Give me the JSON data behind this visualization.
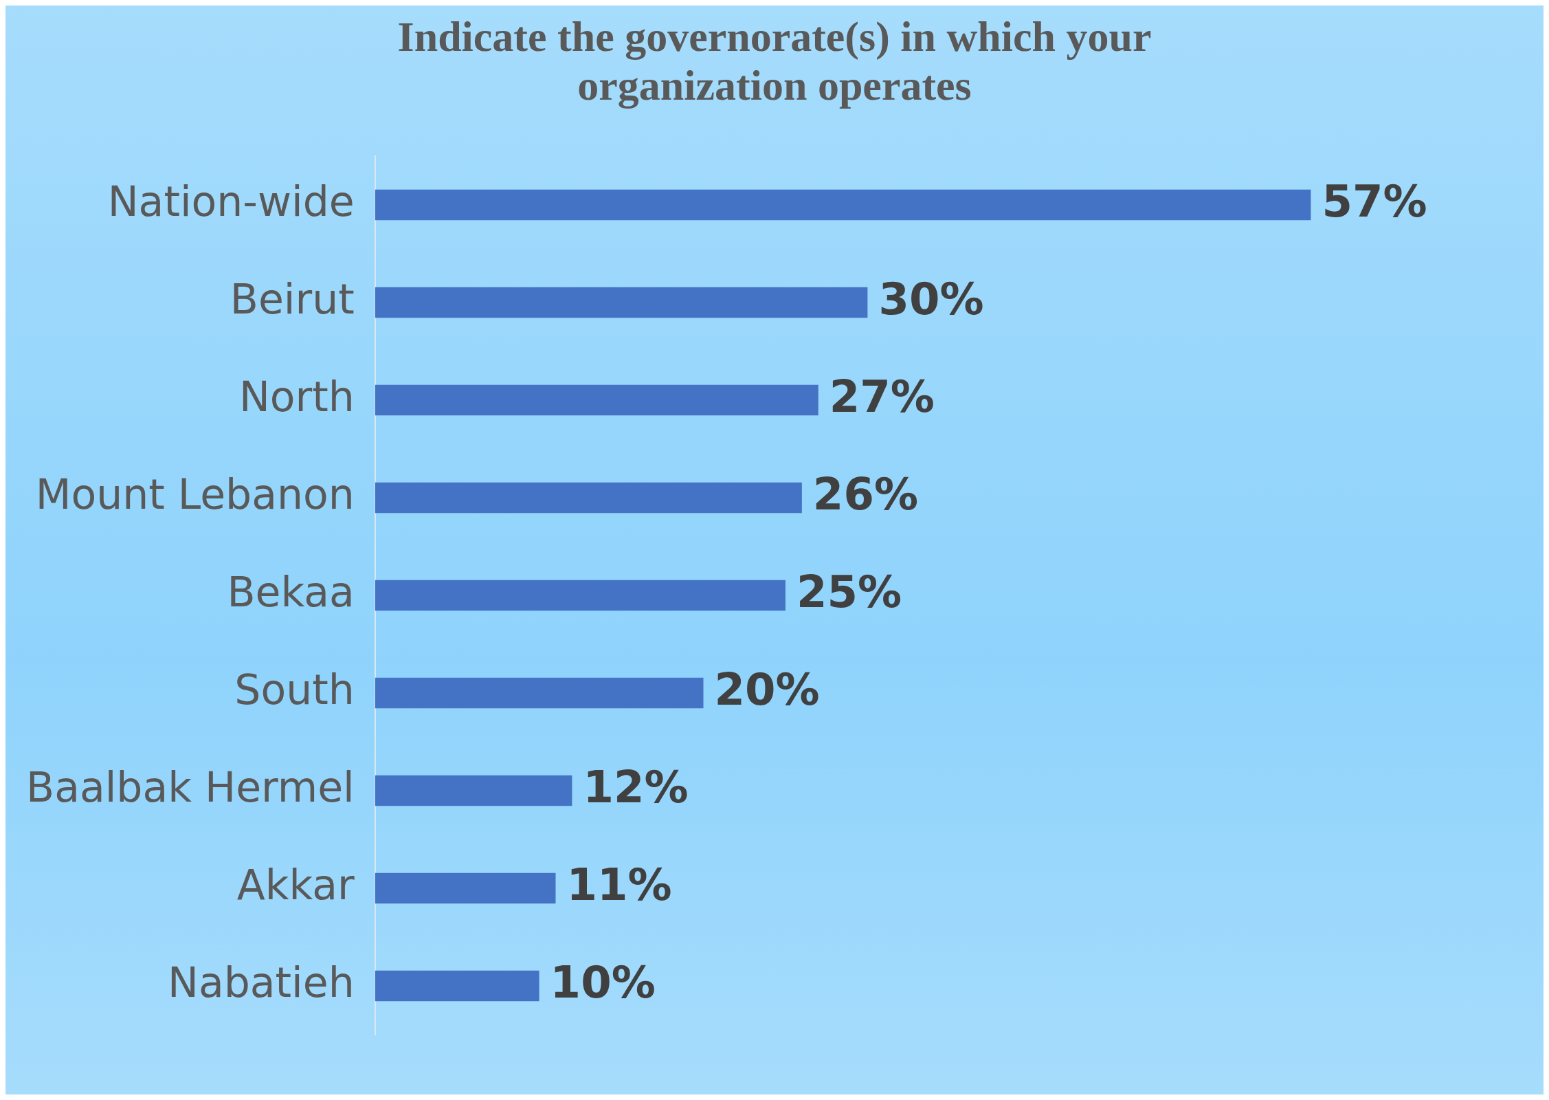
{
  "chart_data": {
    "type": "bar",
    "orientation": "horizontal",
    "title": "Indicate the governorate(s) in which your organization operates",
    "categories": [
      "Nation-wide",
      "Beirut",
      "North",
      "Mount Lebanon",
      "Bekaa",
      "South",
      "Baalbak Hermel",
      "Akkar",
      "Nabatieh"
    ],
    "values": [
      57,
      30,
      27,
      26,
      25,
      20,
      12,
      11,
      10
    ],
    "value_labels": [
      "57%",
      "30%",
      "27%",
      "26%",
      "25%",
      "20%",
      "12%",
      "11%",
      "10%"
    ],
    "color": "#4472c4",
    "legend": false
  }
}
